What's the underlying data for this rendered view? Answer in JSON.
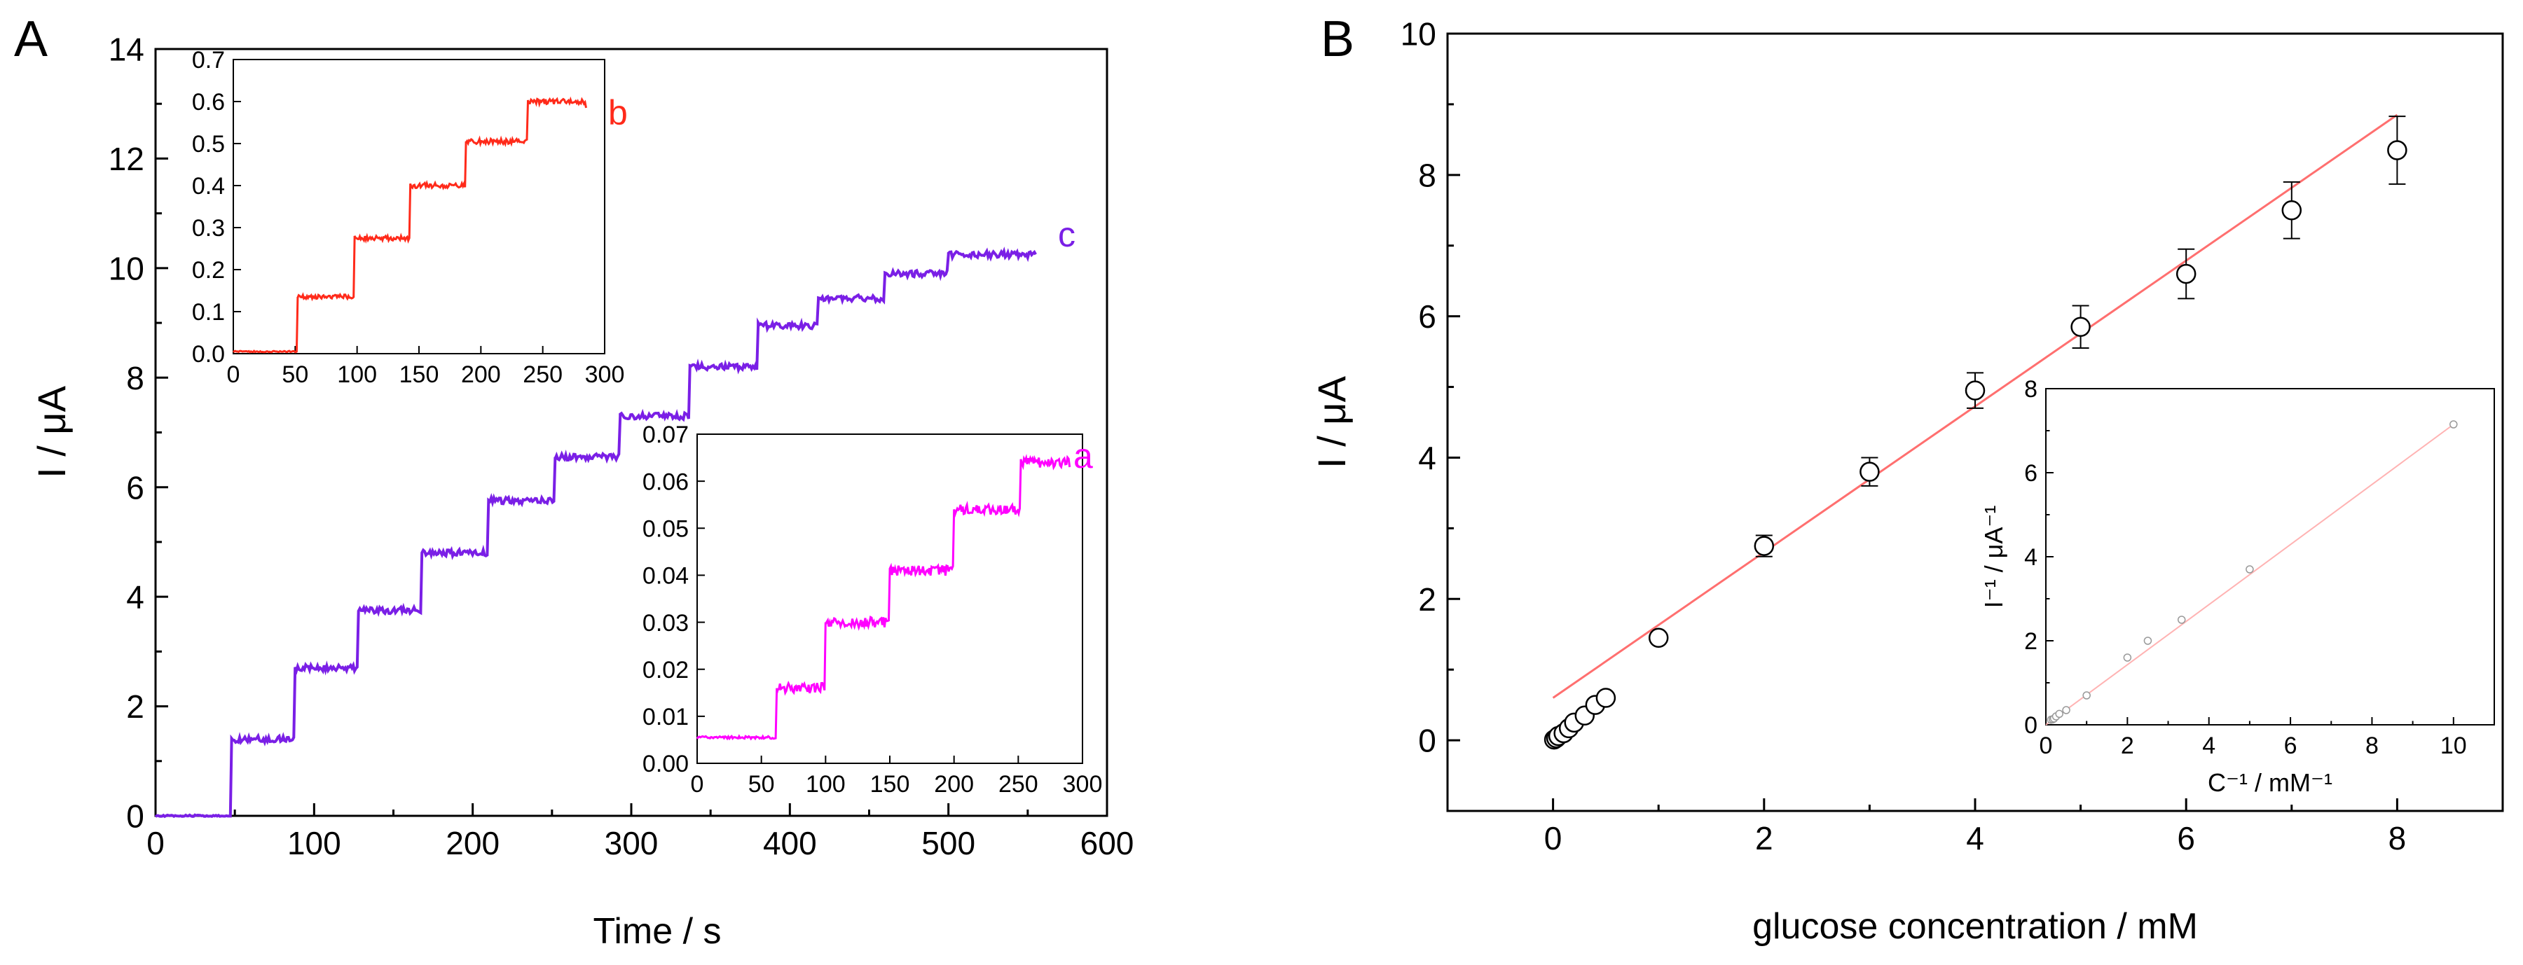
{
  "figure": {
    "panel_a_letter": "A",
    "panel_b_letter": "B"
  },
  "colors": {
    "axis": "#000000",
    "curve_a": "#ff00ff",
    "curve_b": "#ff2a1a",
    "curve_c": "#7a1fe6",
    "fit_line": "#ff6f6f",
    "inset_fit": "#ffb3b3",
    "marker": "#000000"
  },
  "chart_data": [
    {
      "id": "A_main",
      "type": "line",
      "xlabel": "Time / s",
      "ylabel": "I / μA",
      "xlim": [
        0,
        600
      ],
      "ylim": [
        0,
        14
      ],
      "xticks": [
        0,
        100,
        200,
        300,
        400,
        500,
        600
      ],
      "yticks": [
        0,
        2,
        4,
        6,
        8,
        10,
        12,
        14
      ],
      "series": [
        {
          "name": "c",
          "x": [
            0,
            48,
            88,
            128,
            168,
            210,
            252,
            293,
            337,
            380,
            418,
            460,
            500,
            555
          ],
          "values": [
            0,
            1.4,
            2.7,
            3.75,
            4.8,
            5.75,
            6.55,
            7.3,
            8.2,
            8.95,
            9.45,
            9.9,
            10.25,
            10.25
          ]
        }
      ],
      "grid": false
    },
    {
      "id": "A_inset_b",
      "type": "line",
      "xlim": [
        0,
        300
      ],
      "ylim": [
        0,
        0.7
      ],
      "xticks": [
        0,
        50,
        100,
        150,
        200,
        250,
        300
      ],
      "yticks": [
        0.0,
        0.1,
        0.2,
        0.3,
        0.4,
        0.5,
        0.6,
        0.7
      ],
      "series": [
        {
          "name": "b",
          "x": [
            0,
            52,
            98,
            143,
            188,
            238,
            285
          ],
          "values": [
            0.005,
            0.135,
            0.275,
            0.4,
            0.505,
            0.6,
            0.585
          ]
        }
      ],
      "grid": false
    },
    {
      "id": "A_inset_a",
      "type": "line",
      "xlim": [
        0,
        300
      ],
      "ylim": [
        0,
        0.07
      ],
      "xticks": [
        0,
        50,
        100,
        150,
        200,
        250,
        300
      ],
      "yticks": [
        0.0,
        0.01,
        0.02,
        0.03,
        0.04,
        0.05,
        0.06,
        0.07
      ],
      "series": [
        {
          "name": "a",
          "x": [
            0,
            62,
            100,
            150,
            200,
            252,
            290
          ],
          "values": [
            0.0055,
            0.016,
            0.03,
            0.041,
            0.054,
            0.064,
            0.063
          ]
        }
      ],
      "grid": false
    },
    {
      "id": "B_main",
      "type": "scatter",
      "xlabel": "glucose concentration / mM",
      "ylabel": "I / μA",
      "xlim": [
        -1,
        9
      ],
      "ylim": [
        -1,
        10
      ],
      "xticks": [
        0,
        2,
        4,
        6,
        8
      ],
      "yticks": [
        0,
        2,
        4,
        6,
        8,
        10
      ],
      "series": [
        {
          "name": "data",
          "x": [
            0.01,
            0.03,
            0.05,
            0.1,
            0.15,
            0.2,
            0.3,
            0.4,
            0.5,
            1,
            2,
            3,
            4,
            5,
            6,
            7,
            8
          ],
          "values": [
            0.01,
            0.03,
            0.06,
            0.1,
            0.17,
            0.25,
            0.35,
            0.5,
            0.6,
            1.45,
            2.75,
            3.8,
            4.95,
            5.85,
            6.6,
            7.5,
            8.35
          ],
          "errors": [
            0.03,
            0.03,
            0.03,
            0.04,
            0.04,
            0.04,
            0.05,
            0.05,
            0.06,
            0.1,
            0.15,
            0.2,
            0.25,
            0.3,
            0.35,
            0.4,
            0.48
          ]
        }
      ],
      "fit": {
        "x": [
          0,
          8
        ],
        "y": [
          0.6,
          8.85
        ]
      },
      "grid": false
    },
    {
      "id": "B_inset",
      "type": "scatter",
      "xlabel": "C⁻¹ / mM⁻¹",
      "ylabel": "I⁻¹ / μA⁻¹",
      "xlim": [
        0,
        11
      ],
      "ylim": [
        0,
        8
      ],
      "xticks": [
        0,
        2,
        4,
        6,
        8,
        10
      ],
      "yticks": [
        0,
        2,
        4,
        6,
        8
      ],
      "series": [
        {
          "name": "reciprocal",
          "x": [
            0.125,
            0.17,
            0.2,
            0.25,
            0.33,
            0.5,
            1,
            2,
            2.5,
            3.33,
            5,
            10
          ],
          "values": [
            0.12,
            0.13,
            0.15,
            0.2,
            0.26,
            0.35,
            0.7,
            1.6,
            2.0,
            2.5,
            3.7,
            7.15
          ]
        }
      ],
      "fit": {
        "x": [
          0,
          10
        ],
        "y": [
          0,
          7.15
        ]
      },
      "grid": false
    }
  ]
}
